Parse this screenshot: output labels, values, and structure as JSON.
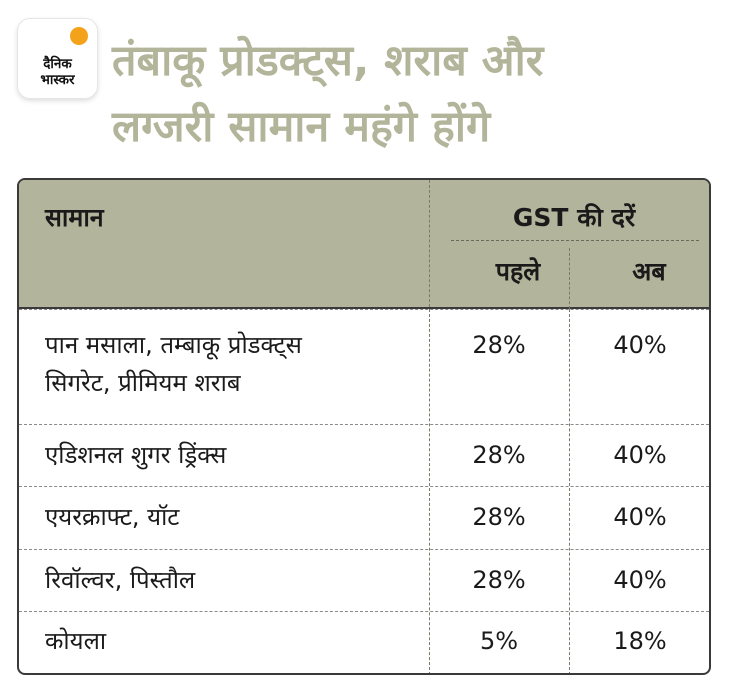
{
  "logo": {
    "line1": "दैनिक",
    "line2": "भास्कर",
    "accent_color": "#f4a21a"
  },
  "title": {
    "line1": "तंबाकू प्रोडक्ट्स, शराब और",
    "line2": "लग्जरी सामान महंगे होंगे",
    "color": "#b3b59a"
  },
  "table": {
    "header": {
      "item": "सामान",
      "gst": "GST की दरें",
      "before": "पहले",
      "after": "अब",
      "bg_color": "#b3b49c"
    },
    "rows": [
      {
        "item_line1": "पान मसाला, तम्बाकू प्रोडक्ट्स",
        "item_line2": "सिगरेट, प्रीमियम शराब",
        "before": "28%",
        "after": "40%"
      },
      {
        "item_line1": "एडिशनल शुगर ड्रिंक्स",
        "before": "28%",
        "after": "40%"
      },
      {
        "item_line1": "एयरक्राफ्ट, यॉट",
        "before": "28%",
        "after": "40%"
      },
      {
        "item_line1": "रिवॉल्वर, पिस्तौल",
        "before": "28%",
        "after": "40%"
      },
      {
        "item_line1": "कोयला",
        "before": "5%",
        "after": "18%"
      }
    ]
  }
}
